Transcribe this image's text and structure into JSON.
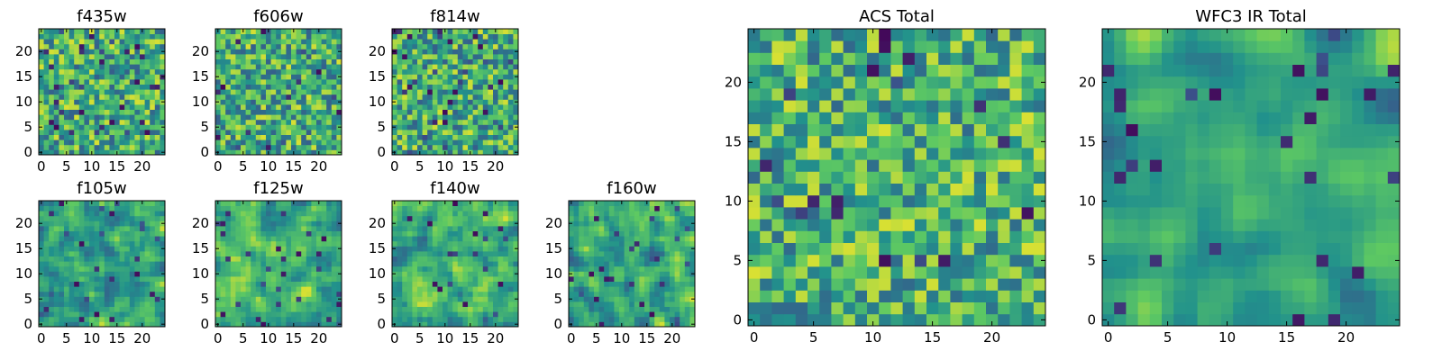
{
  "figure": {
    "colormap": "viridis",
    "colormap_stops": [
      "#440154",
      "#3b528b",
      "#21918c",
      "#5ec962",
      "#fde725"
    ],
    "frame_color": "#000000",
    "background": "#ffffff"
  },
  "chart_data": [
    {
      "id": "f435w",
      "type": "heatmap",
      "title": "f435w",
      "grid": [
        25,
        25
      ],
      "xlim": [
        -0.5,
        24.5
      ],
      "ylim": [
        -0.5,
        24.5
      ],
      "xticks": [
        "0",
        "5",
        "10",
        "15",
        "20"
      ],
      "yticks": [
        "0",
        "5",
        "10",
        "15",
        "20"
      ],
      "seed": 11,
      "smooth": 0,
      "bias": 0.62,
      "spread": 0.2
    },
    {
      "id": "f606w",
      "type": "heatmap",
      "title": "f606w",
      "grid": [
        25,
        25
      ],
      "xlim": [
        -0.5,
        24.5
      ],
      "ylim": [
        -0.5,
        24.5
      ],
      "xticks": [
        "0",
        "5",
        "10",
        "15",
        "20"
      ],
      "yticks": [
        "0",
        "5",
        "10",
        "15",
        "20"
      ],
      "seed": 23,
      "smooth": 0,
      "bias": 0.62,
      "spread": 0.2
    },
    {
      "id": "f814w",
      "type": "heatmap",
      "title": "f814w",
      "grid": [
        25,
        25
      ],
      "xlim": [
        -0.5,
        24.5
      ],
      "ylim": [
        -0.5,
        24.5
      ],
      "xticks": [
        "0",
        "5",
        "10",
        "15",
        "20"
      ],
      "yticks": [
        "0",
        "5",
        "10",
        "15",
        "20"
      ],
      "seed": 37,
      "smooth": 0,
      "bias": 0.62,
      "spread": 0.2
    },
    {
      "id": "f105w",
      "type": "heatmap",
      "title": "f105w",
      "grid": [
        25,
        25
      ],
      "xlim": [
        -0.5,
        24.5
      ],
      "ylim": [
        -0.5,
        24.5
      ],
      "xticks": [
        "0",
        "5",
        "10",
        "15",
        "20"
      ],
      "yticks": [
        "0",
        "5",
        "10",
        "15",
        "20"
      ],
      "seed": 41,
      "smooth": 1,
      "bias": 0.6,
      "spread": 0.2
    },
    {
      "id": "f125w",
      "type": "heatmap",
      "title": "f125w",
      "grid": [
        25,
        25
      ],
      "xlim": [
        -0.5,
        24.5
      ],
      "ylim": [
        -0.5,
        24.5
      ],
      "xticks": [
        "0",
        "5",
        "10",
        "15",
        "20"
      ],
      "yticks": [
        "0",
        "5",
        "10",
        "15",
        "20"
      ],
      "seed": 53,
      "smooth": 1,
      "bias": 0.62,
      "spread": 0.2
    },
    {
      "id": "f140w",
      "type": "heatmap",
      "title": "f140w",
      "grid": [
        25,
        25
      ],
      "xlim": [
        -0.5,
        24.5
      ],
      "ylim": [
        -0.5,
        24.5
      ],
      "xticks": [
        "0",
        "5",
        "10",
        "15",
        "20"
      ],
      "yticks": [
        "0",
        "5",
        "10",
        "15",
        "20"
      ],
      "seed": 67,
      "smooth": 1,
      "bias": 0.62,
      "spread": 0.2
    },
    {
      "id": "f160w",
      "type": "heatmap",
      "title": "f160w",
      "grid": [
        25,
        25
      ],
      "xlim": [
        -0.5,
        24.5
      ],
      "ylim": [
        -0.5,
        24.5
      ],
      "xticks": [
        "0",
        "5",
        "10",
        "15",
        "20"
      ],
      "yticks": [
        "0",
        "5",
        "10",
        "15",
        "20"
      ],
      "seed": 79,
      "smooth": 1,
      "bias": 0.58,
      "spread": 0.22
    },
    {
      "id": "acs-total",
      "type": "heatmap",
      "title": "ACS Total",
      "grid": [
        25,
        25
      ],
      "xlim": [
        -0.5,
        24.5
      ],
      "ylim": [
        -0.5,
        24.5
      ],
      "xticks": [
        "0",
        "5",
        "10",
        "15",
        "20"
      ],
      "yticks": [
        "0",
        "5",
        "10",
        "15",
        "20"
      ],
      "seed": 97,
      "smooth": 0,
      "bias": 0.64,
      "spread": 0.19
    },
    {
      "id": "wfc3-ir-total",
      "type": "heatmap",
      "title": "WFC3 IR Total",
      "grid": [
        25,
        25
      ],
      "xlim": [
        -0.5,
        24.5
      ],
      "ylim": [
        -0.5,
        24.5
      ],
      "xticks": [
        "0",
        "5",
        "10",
        "15",
        "20"
      ],
      "yticks": [
        "0",
        "5",
        "10",
        "15",
        "20"
      ],
      "seed": 113,
      "smooth": 2,
      "bias": 0.6,
      "spread": 0.18
    }
  ]
}
